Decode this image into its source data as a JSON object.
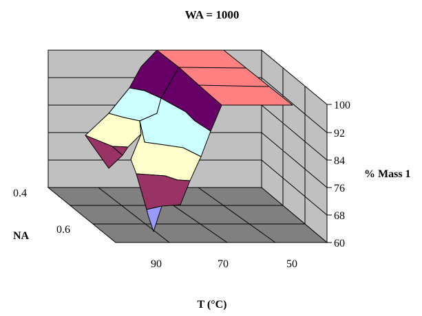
{
  "chart_data": {
    "type": "surface",
    "title": "WA = 1000",
    "xlabel": "T (°C)",
    "ylabel": "NA",
    "zlabel": "% Mass 1",
    "x_ticks": [
      "90",
      "70",
      "50"
    ],
    "y_ticks": [
      "0.4",
      "0.6"
    ],
    "z_ticks": [
      "100",
      "92",
      "84",
      "76",
      "68",
      "60"
    ],
    "zlim": [
      60,
      100
    ],
    "color_bands": [
      {
        "range": [
          60,
          68
        ],
        "color": "#9999ff"
      },
      {
        "range": [
          68,
          76
        ],
        "color": "#993366"
      },
      {
        "range": [
          76,
          84
        ],
        "color": "#ffffcc"
      },
      {
        "range": [
          84,
          92
        ],
        "color": "#ccffff"
      },
      {
        "range": [
          92,
          100
        ],
        "color": "#660066"
      },
      {
        "range": [
          100,
          108
        ],
        "color": "#ff8080"
      }
    ],
    "colors": {
      "back_wall": "#c0c0c0",
      "floor": "#808080",
      "side_wall": "#c0c0c0",
      "grid": "#000000"
    }
  }
}
